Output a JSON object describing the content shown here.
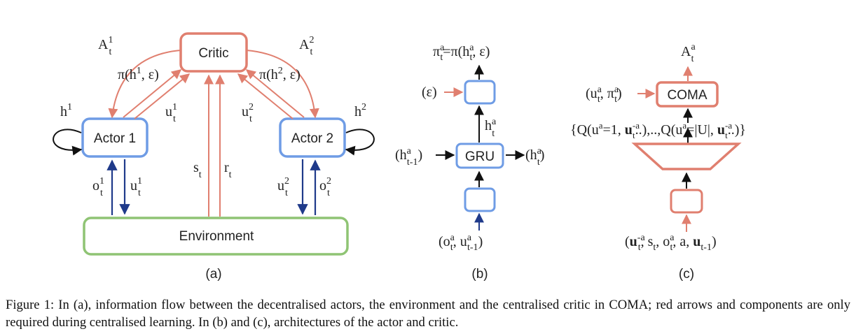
{
  "colors": {
    "critic": "#e07f6f",
    "actor": "#6f9ce5",
    "environment": "#8fc474",
    "obs_arrow": "#1f3a8a",
    "black": "#111111"
  },
  "panel_a": {
    "critic_label": "Critic",
    "actor1_label": "Actor 1",
    "actor2_label": "Actor 2",
    "environment_label": "Environment",
    "advantage1": "A",
    "advantage1_sup": "1",
    "advantage1_sub": "t",
    "advantage2": "A",
    "advantage2_sup": "2",
    "advantage2_sub": "t",
    "policy1": "π(h",
    "policy1_sup": "1",
    "policy1_tail": ", ε)",
    "policy2": "π(h",
    "policy2_sup": "2",
    "policy2_tail": ", ε)",
    "hidden1": "h",
    "hidden1_sup": "1",
    "hidden2": "h",
    "hidden2_sup": "2",
    "action1_up": "u",
    "action1_up_sup": "1",
    "action1_up_sub": "t",
    "action2_up": "u",
    "action2_up_sup": "2",
    "action2_up_sub": "t",
    "state": "s",
    "state_sub": "t",
    "reward": "r",
    "reward_sub": "t",
    "obs1": "o",
    "obs1_sup": "1",
    "obs1_sub": "t",
    "act1_down": "u",
    "act1_down_sup": "1",
    "act1_down_sub": "t",
    "act2_down": "u",
    "act2_down_sup": "2",
    "act2_down_sub": "t",
    "obs2": "o",
    "obs2_sup": "2",
    "obs2_sub": "t",
    "panel_label": "(a)"
  },
  "panel_b": {
    "output_pre": "π",
    "output_sup": "a",
    "output_sub": "t",
    "output_mid": "=π(h",
    "output_sup2": "a",
    "output_sub2": "t",
    "output_tail": ", ε)",
    "eps_label": "(ε)",
    "hidden_out": "h",
    "hidden_out_sup": "a",
    "hidden_out_sub": "t",
    "gru_label": "GRU",
    "hprev": "(h",
    "hprev_sup": "a",
    "hprev_sub": "t-1",
    "hprev_tail": ")",
    "hnext": "(h",
    "hnext_sup": "a",
    "hnext_sub": "t",
    "hnext_tail": ")",
    "input": "(o",
    "input_sup": "a",
    "input_sub": "t",
    "input_mid": ", u",
    "input_sup2": "a",
    "input_sub2": "t-1",
    "input_tail": ")",
    "panel_label": "(b)"
  },
  "panel_c": {
    "advantage": "A",
    "advantage_sup": "a",
    "advantage_sub": "t",
    "coma_label": "COMA",
    "coma_input": "(u",
    "coma_input_sup": "a",
    "coma_input_sub": "t",
    "coma_input_mid": ", π",
    "coma_input_sup2": "a",
    "coma_input_sub2": "t",
    "coma_input_tail": ")",
    "q_values": "{Q(u",
    "q_values_sup1": "a",
    "q_values_mid1": "=1, ",
    "q_values_bold1": "u",
    "q_values_sup2": "-a",
    "q_values_sub2": "t",
    "q_values_mid2": "..),..,Q(u",
    "q_values_sup3": "a",
    "q_values_mid3": "=|U|, ",
    "q_values_bold2": "u",
    "q_values_sup4": "-a",
    "q_values_sub4": "t",
    "q_values_tail": "..)}",
    "input_open": "(",
    "input_bold1": "u",
    "input_sup1": "-a",
    "input_sub1": "t",
    "input_mid1": ", s",
    "input_sub2": "t",
    "input_mid2": ", o",
    "input_sup3": "a",
    "input_sub3": "t",
    "input_mid3": ", a, ",
    "input_bold2": "u",
    "input_sub4": "t-1",
    "input_tail": ")",
    "panel_label": "(c)"
  },
  "caption": "Figure 1: In (a), information flow between the decentralised actors, the environment and the centralised critic in COMA; red arrows and components are only required during centralised learning. In (b) and (c), architectures of the actor and critic."
}
